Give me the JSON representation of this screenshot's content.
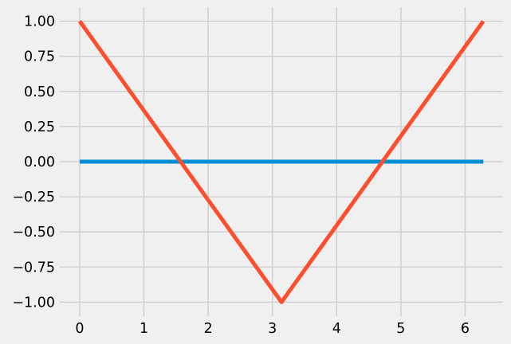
{
  "chart_data": {
    "type": "line",
    "title": "",
    "xlabel": "",
    "ylabel": "",
    "xlim": [
      -0.31,
      6.59
    ],
    "ylim": [
      -1.1,
      1.1
    ],
    "grid": true,
    "legend": "none",
    "x_ticks": [
      0,
      1,
      2,
      3,
      4,
      5,
      6
    ],
    "x_tick_labels": [
      "0",
      "1",
      "2",
      "3",
      "4",
      "5",
      "6"
    ],
    "y_ticks": [
      1.0,
      0.75,
      0.5,
      0.25,
      0.0,
      -0.25,
      -0.5,
      -0.75,
      -1.0
    ],
    "y_tick_labels": [
      "1.00",
      "0.75",
      "0.50",
      "0.25",
      "0.00",
      "−0.25",
      "−0.50",
      "−0.75",
      "−1.00"
    ],
    "series": [
      {
        "color": "#008fd5",
        "x": [
          0,
          6.2832
        ],
        "y": [
          0,
          0
        ]
      },
      {
        "color": "#fc4f30",
        "x": [
          0,
          3.1416,
          6.2832
        ],
        "y": [
          1,
          -1,
          1
        ]
      }
    ]
  },
  "colors": {
    "background": "#f0f0f0",
    "grid": "#cbcbcb"
  }
}
